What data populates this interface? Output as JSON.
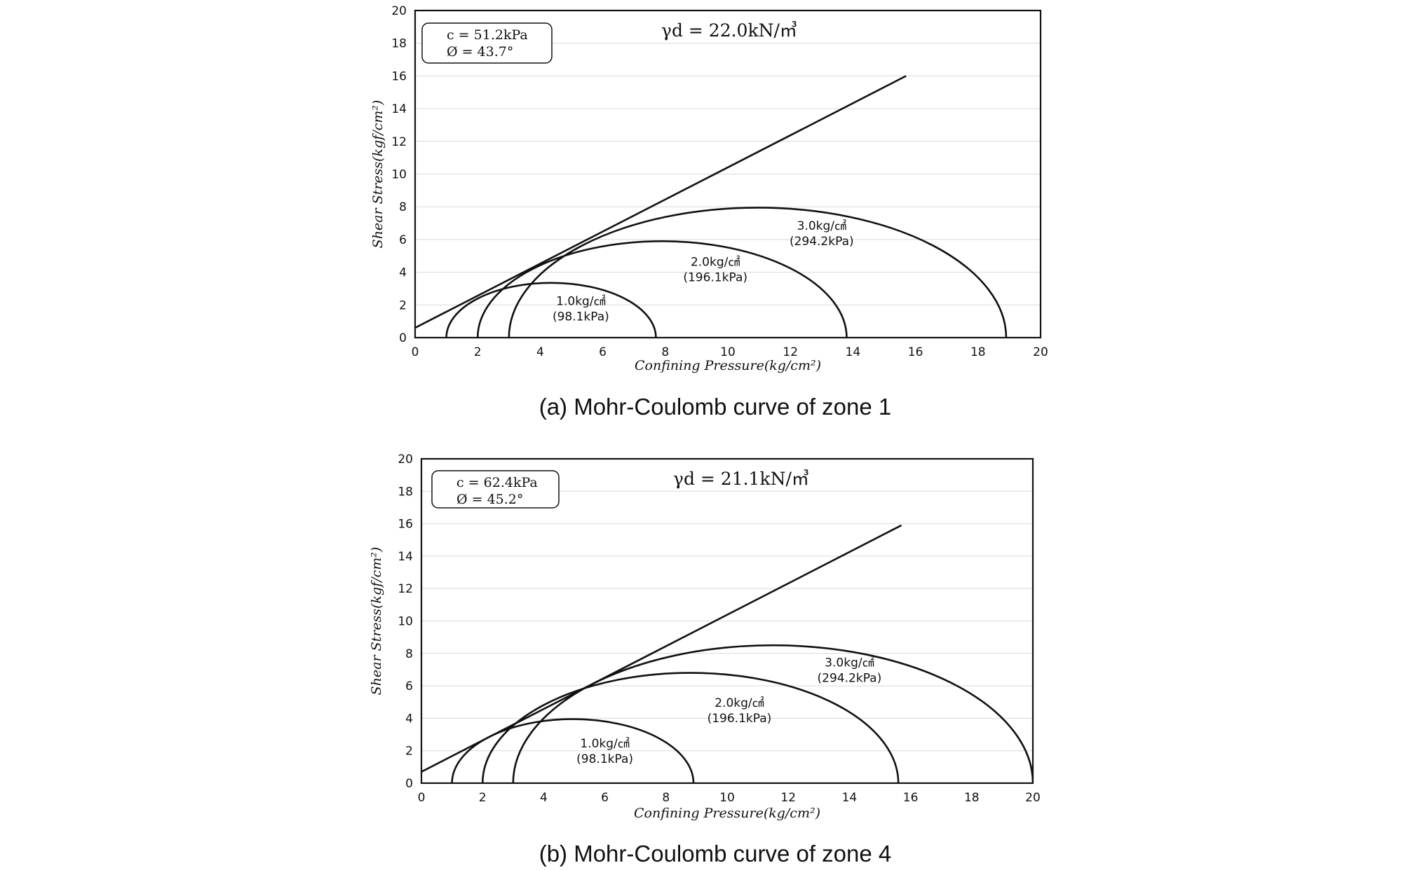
{
  "chart_data": [
    {
      "type": "line",
      "caption": "(a) Mohr-Coulomb curve of zone 1",
      "xlabel": "Confining Pressure(kg/cm²)",
      "ylabel": "Shear Stress(kgf/cm²)",
      "xlim": [
        0,
        20
      ],
      "ylim": [
        0,
        20
      ],
      "xticks": [
        "0",
        "2",
        "4",
        "6",
        "8",
        "10",
        "12",
        "14",
        "16",
        "18",
        "20"
      ],
      "yticks": [
        "0",
        "2",
        "4",
        "6",
        "8",
        "10",
        "12",
        "14",
        "16",
        "18",
        "20"
      ],
      "grid": "horizontal",
      "params": {
        "c": "c = 51.2kPa",
        "phi": "Ø = 43.7°"
      },
      "density": "γd = 22.0kN/㎥",
      "envelope": {
        "x": [
          0,
          15.7
        ],
        "y": [
          0.6,
          16.0
        ]
      },
      "circles": [
        {
          "label": "1.0kg/㎠",
          "label_kpa": "(98.1kPa)",
          "sigma3": 1.0,
          "sigma1": 7.7,
          "label_pos": [
            5.3,
            2.0
          ]
        },
        {
          "label": "2.0kg/㎠",
          "label_kpa": "(196.1kPa)",
          "sigma3": 2.0,
          "sigma1": 13.8,
          "label_pos": [
            9.6,
            4.4
          ]
        },
        {
          "label": "3.0kg/㎠",
          "label_kpa": "(294.2kPa)",
          "sigma3": 3.0,
          "sigma1": 18.9,
          "label_pos": [
            13.0,
            6.6
          ]
        }
      ]
    },
    {
      "type": "line",
      "caption": "(b) Mohr-Coulomb curve of zone 4",
      "xlabel": "Confining Pressure(kg/cm²)",
      "ylabel": "Shear Stress(kgf/cm²)",
      "xlim": [
        0,
        20
      ],
      "ylim": [
        0,
        20
      ],
      "xticks": [
        "0",
        "2",
        "4",
        "6",
        "8",
        "10",
        "12",
        "14",
        "16",
        "18",
        "20"
      ],
      "yticks": [
        "0",
        "2",
        "4",
        "6",
        "8",
        "10",
        "12",
        "14",
        "16",
        "18",
        "20"
      ],
      "grid": "horizontal",
      "params": {
        "c": "c = 62.4kPa",
        "phi": "Ø = 45.2°"
      },
      "density": "γd = 21.1kN/㎥",
      "envelope": {
        "x": [
          0,
          15.7
        ],
        "y": [
          0.7,
          15.9
        ]
      },
      "circles": [
        {
          "label": "1.0kg/㎠",
          "label_kpa": "(98.1kPa)",
          "sigma3": 1.0,
          "sigma1": 8.9,
          "label_pos": [
            6.0,
            2.2
          ]
        },
        {
          "label": "2.0kg/㎠",
          "label_kpa": "(196.1kPa)",
          "sigma3": 2.0,
          "sigma1": 15.6,
          "label_pos": [
            10.4,
            4.7
          ]
        },
        {
          "label": "3.0kg/㎠",
          "label_kpa": "(294.2kPa)",
          "sigma3": 3.0,
          "sigma1": 20.0,
          "label_pos": [
            14.0,
            7.2
          ]
        }
      ]
    }
  ]
}
